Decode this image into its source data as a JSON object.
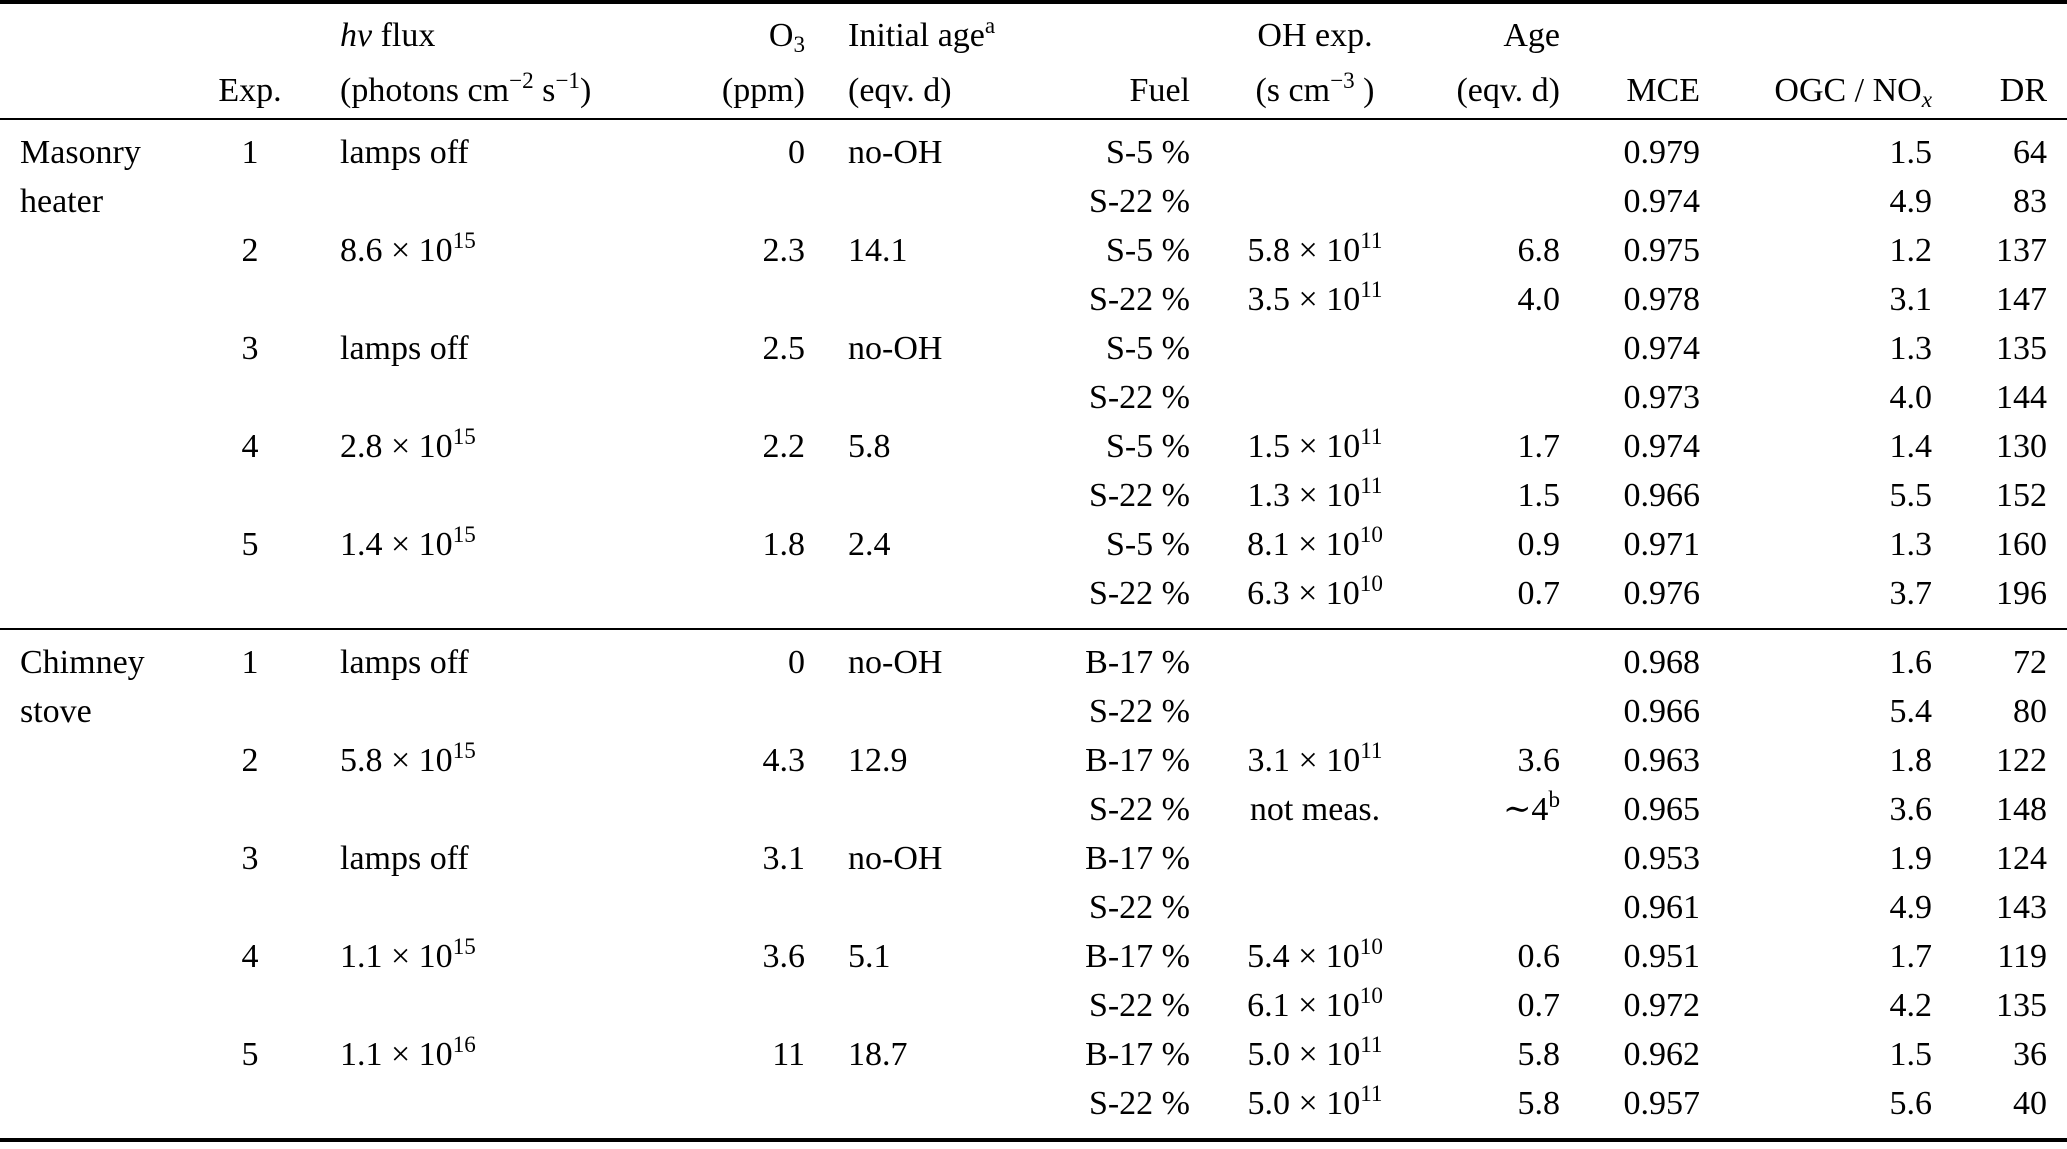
{
  "table": {
    "columns": {
      "group": {
        "h1": "",
        "h2": ""
      },
      "exp": {
        "h1": "",
        "h2": "Exp."
      },
      "flux": {
        "h1": "*hν* flux",
        "h2": "(photons cm^{−2} s^{−1})"
      },
      "o3": {
        "h1": "O_{3}",
        "h2": "(ppm)"
      },
      "initial_age": {
        "h1": "Initial age^{a}",
        "h2": "(eqv. d)"
      },
      "fuel": {
        "h1": "",
        "h2": "Fuel"
      },
      "oh_exp": {
        "h1": "OH exp.",
        "h2": "(s cm^{−3} )"
      },
      "age": {
        "h1": "Age",
        "h2": "(eqv. d)"
      },
      "mce": {
        "h1": "",
        "h2": "MCE"
      },
      "ogc_nox": {
        "h1": "",
        "h2": "OGC / NO_{*x*}"
      },
      "dr": {
        "h1": "",
        "h2": "DR"
      }
    },
    "sections": [
      {
        "group": "Masonry heater",
        "rows": [
          {
            "exp": "1",
            "flux": "lamps off",
            "o3": "0",
            "initial_age": "no-OH",
            "fuel": "S-5 %",
            "oh_exp": "",
            "age": "",
            "mce": "0.979",
            "ogc_nox": "1.5",
            "dr": "64"
          },
          {
            "exp": "",
            "flux": "",
            "o3": "",
            "initial_age": "",
            "fuel": "S-22 %",
            "oh_exp": "",
            "age": "",
            "mce": "0.974",
            "ogc_nox": "4.9",
            "dr": "83"
          },
          {
            "exp": "2",
            "flux": "8.6 × 10^{15}",
            "o3": "2.3",
            "initial_age": "14.1",
            "fuel": "S-5 %",
            "oh_exp": "5.8 × 10^{11}",
            "age": "6.8",
            "mce": "0.975",
            "ogc_nox": "1.2",
            "dr": "137"
          },
          {
            "exp": "",
            "flux": "",
            "o3": "",
            "initial_age": "",
            "fuel": "S-22 %",
            "oh_exp": "3.5 × 10^{11}",
            "age": "4.0",
            "mce": "0.978",
            "ogc_nox": "3.1",
            "dr": "147"
          },
          {
            "exp": "3",
            "flux": "lamps off",
            "o3": "2.5",
            "initial_age": "no-OH",
            "fuel": "S-5 %",
            "oh_exp": "",
            "age": "",
            "mce": "0.974",
            "ogc_nox": "1.3",
            "dr": "135"
          },
          {
            "exp": "",
            "flux": "",
            "o3": "",
            "initial_age": "",
            "fuel": "S-22 %",
            "oh_exp": "",
            "age": "",
            "mce": "0.973",
            "ogc_nox": "4.0",
            "dr": "144"
          },
          {
            "exp": "4",
            "flux": "2.8 × 10^{15}",
            "o3": "2.2",
            "initial_age": "5.8",
            "fuel": "S-5 %",
            "oh_exp": "1.5 × 10^{11}",
            "age": "1.7",
            "mce": "0.974",
            "ogc_nox": "1.4",
            "dr": "130"
          },
          {
            "exp": "",
            "flux": "",
            "o3": "",
            "initial_age": "",
            "fuel": "S-22 %",
            "oh_exp": "1.3 × 10^{11}",
            "age": "1.5",
            "mce": "0.966",
            "ogc_nox": "5.5",
            "dr": "152"
          },
          {
            "exp": "5",
            "flux": "1.4 × 10^{15}",
            "o3": "1.8",
            "initial_age": "2.4",
            "fuel": "S-5 %",
            "oh_exp": "8.1 × 10^{10}",
            "age": "0.9",
            "mce": "0.971",
            "ogc_nox": "1.3",
            "dr": "160"
          },
          {
            "exp": "",
            "flux": "",
            "o3": "",
            "initial_age": "",
            "fuel": "S-22 %",
            "oh_exp": "6.3 × 10^{10}",
            "age": "0.7",
            "mce": "0.976",
            "ogc_nox": "3.7",
            "dr": "196"
          }
        ]
      },
      {
        "group": "Chimney stove",
        "rows": [
          {
            "exp": "1",
            "flux": "lamps off",
            "o3": "0",
            "initial_age": "no-OH",
            "fuel": "B-17 %",
            "oh_exp": "",
            "age": "",
            "mce": "0.968",
            "ogc_nox": "1.6",
            "dr": "72"
          },
          {
            "exp": "",
            "flux": "",
            "o3": "",
            "initial_age": "",
            "fuel": "S-22 %",
            "oh_exp": "",
            "age": "",
            "mce": "0.966",
            "ogc_nox": "5.4",
            "dr": "80"
          },
          {
            "exp": "2",
            "flux": "5.8 × 10^{15}",
            "o3": "4.3",
            "initial_age": "12.9",
            "fuel": "B-17 %",
            "oh_exp": "3.1 × 10^{11}",
            "age": "3.6",
            "mce": "0.963",
            "ogc_nox": "1.8",
            "dr": "122"
          },
          {
            "exp": "",
            "flux": "",
            "o3": "",
            "initial_age": "",
            "fuel": "S-22 %",
            "oh_exp": "not meas.",
            "age": "∼4^{b}",
            "mce": "0.965",
            "ogc_nox": "3.6",
            "dr": "148"
          },
          {
            "exp": "3",
            "flux": "lamps off",
            "o3": "3.1",
            "initial_age": "no-OH",
            "fuel": "B-17 %",
            "oh_exp": "",
            "age": "",
            "mce": "0.953",
            "ogc_nox": "1.9",
            "dr": "124"
          },
          {
            "exp": "",
            "flux": "",
            "o3": "",
            "initial_age": "",
            "fuel": "S-22 %",
            "oh_exp": "",
            "age": "",
            "mce": "0.961",
            "ogc_nox": "4.9",
            "dr": "143"
          },
          {
            "exp": "4",
            "flux": "1.1 × 10^{15}",
            "o3": "3.6",
            "initial_age": "5.1",
            "fuel": "B-17 %",
            "oh_exp": "5.4 × 10^{10}",
            "age": "0.6",
            "mce": "0.951",
            "ogc_nox": "1.7",
            "dr": "119"
          },
          {
            "exp": "",
            "flux": "",
            "o3": "",
            "initial_age": "",
            "fuel": "S-22 %",
            "oh_exp": "6.1 × 10^{10}",
            "age": "0.7",
            "mce": "0.972",
            "ogc_nox": "4.2",
            "dr": "135"
          },
          {
            "exp": "5",
            "flux": "1.1 × 10^{16}",
            "o3": "11",
            "initial_age": "18.7",
            "fuel": "B-17 %",
            "oh_exp": "5.0 × 10^{11}",
            "age": "5.8",
            "mce": "0.962",
            "ogc_nox": "1.5",
            "dr": "36"
          },
          {
            "exp": "",
            "flux": "",
            "o3": "",
            "initial_age": "",
            "fuel": "S-22 %",
            "oh_exp": "5.0 × 10^{11}",
            "age": "5.8",
            "mce": "0.957",
            "ogc_nox": "5.6",
            "dr": "40"
          }
        ]
      }
    ]
  }
}
